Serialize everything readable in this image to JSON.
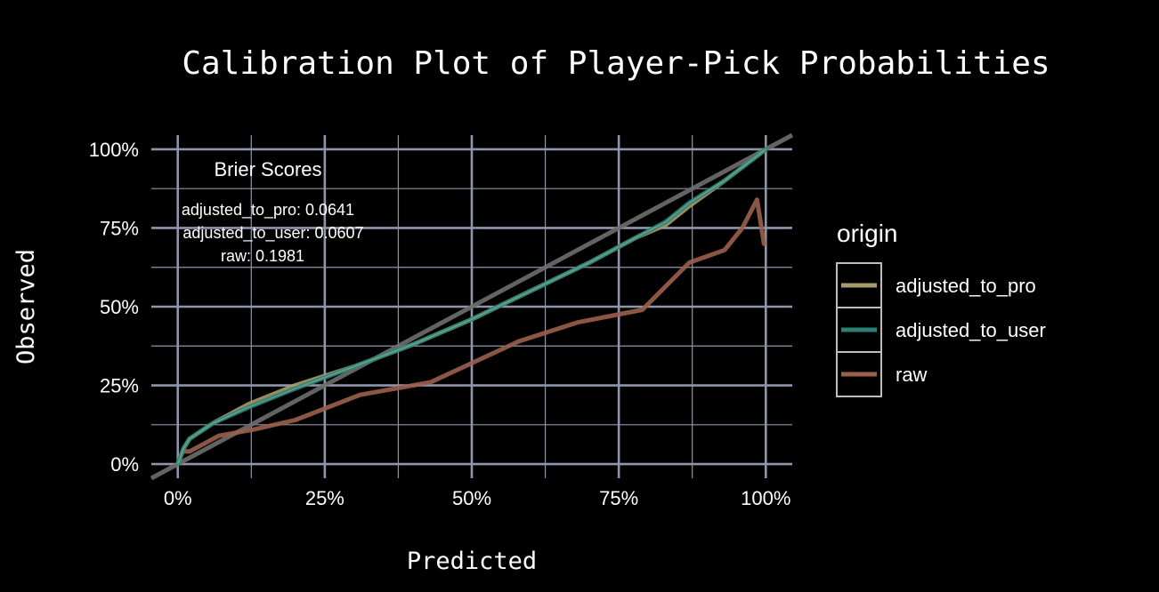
{
  "chart_data": {
    "type": "line",
    "title": "Calibration Plot of Player-Pick Probabilities",
    "xlabel": "Predicted",
    "ylabel": "Observed",
    "xlim": [
      -0.045,
      1.045
    ],
    "ylim": [
      -0.045,
      1.045
    ],
    "x_ticks": [
      0,
      0.25,
      0.5,
      0.75,
      1
    ],
    "x_tick_labels": [
      "0%",
      "25%",
      "50%",
      "75%",
      "100%"
    ],
    "y_ticks": [
      0,
      0.25,
      0.5,
      0.75,
      1
    ],
    "y_tick_labels": [
      "0%",
      "25%",
      "50%",
      "75%",
      "100%"
    ],
    "grid": true,
    "background": "#000000",
    "grid_color": "#8f95ab",
    "reference_line": {
      "x": [
        -0.045,
        1.045
      ],
      "y": [
        -0.045,
        1.045
      ],
      "color": "#6e6e6e"
    },
    "annotation": {
      "heading": "Brier Scores",
      "lines": [
        "adjusted_to_pro: 0.0641",
        "adjusted_to_user: 0.0607",
        "raw: 0.1981"
      ]
    },
    "legend": {
      "title": "origin",
      "placement": "right"
    },
    "series": [
      {
        "name": "adjusted_to_pro",
        "color": "#a79a6a",
        "x": [
          0.0,
          0.01,
          0.02,
          0.06,
          0.12,
          0.2,
          0.3,
          0.4,
          0.5,
          0.6,
          0.7,
          0.78,
          0.83,
          0.87,
          0.93,
          1.0
        ],
        "y": [
          0.0,
          0.05,
          0.08,
          0.13,
          0.19,
          0.25,
          0.31,
          0.38,
          0.46,
          0.55,
          0.64,
          0.72,
          0.76,
          0.82,
          0.9,
          1.0
        ]
      },
      {
        "name": "adjusted_to_user",
        "color": "#2e7f73",
        "x": [
          0.0,
          0.01,
          0.02,
          0.06,
          0.12,
          0.2,
          0.3,
          0.4,
          0.5,
          0.6,
          0.7,
          0.78,
          0.83,
          0.87,
          0.93,
          1.0
        ],
        "y": [
          0.0,
          0.05,
          0.08,
          0.13,
          0.18,
          0.24,
          0.31,
          0.38,
          0.46,
          0.55,
          0.64,
          0.72,
          0.77,
          0.83,
          0.9,
          1.0
        ]
      },
      {
        "name": "raw",
        "color": "#9b5f4c",
        "x": [
          0.01,
          0.02,
          0.07,
          0.13,
          0.2,
          0.31,
          0.43,
          0.58,
          0.68,
          0.79,
          0.87,
          0.93,
          0.96,
          0.985,
          0.997
        ],
        "y": [
          0.04,
          0.04,
          0.09,
          0.11,
          0.14,
          0.22,
          0.26,
          0.39,
          0.45,
          0.49,
          0.64,
          0.68,
          0.75,
          0.84,
          0.7
        ]
      }
    ]
  }
}
